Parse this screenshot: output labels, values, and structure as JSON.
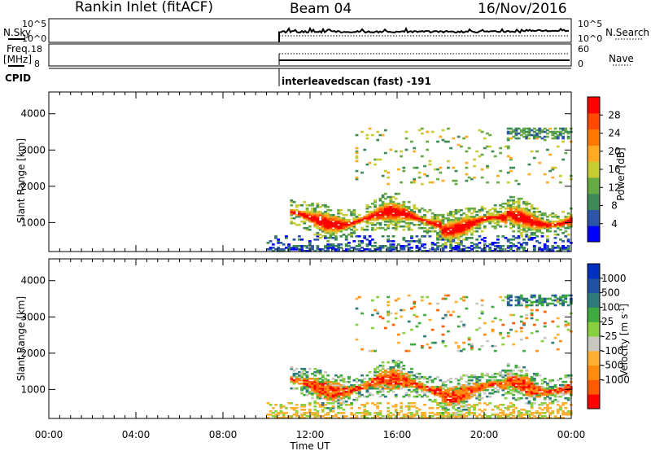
{
  "header": {
    "station": "Rankin Inlet (fitACF)",
    "beam": "Beam 04",
    "date": "16/Nov/2016"
  },
  "strip": {
    "nsky_label": "N.Sky",
    "nsky_top": "10^5",
    "nsky_bottom": "10^0",
    "nsearch_label": "N.Search",
    "freq_label_1": "Freq.",
    "freq_label_2": "[MHz]",
    "freq_top": "18",
    "freq_bottom": "8",
    "nave_top": "60",
    "nave_bottom": "0",
    "nave_label": "Nave",
    "cpid_label": "CPID",
    "cpid_text": "interleavedscan (fast) -191"
  },
  "colors": {
    "power": [
      "#0000ff",
      "#2c55a8",
      "#3d8a55",
      "#66aa44",
      "#c8cc33",
      "#ffaa22",
      "#ff7a00",
      "#ff4a00",
      "#ff0000"
    ],
    "velocity": [
      "#ff0000",
      "#ff5a00",
      "#ff8c10",
      "#ffb030",
      "#c8c8c0",
      "#88d040",
      "#3faa3f",
      "#2f7a7a",
      "#2050a0",
      "#0030c0"
    ]
  },
  "chart_data": [
    {
      "type": "heatmap",
      "name": "power",
      "xlabel": "Time UT",
      "ylabel": "Slant Range [km]",
      "x_ticks": [
        "00:00",
        "04:00",
        "08:00",
        "12:00",
        "16:00",
        "20:00",
        "00:00"
      ],
      "y_ticks": [
        1000,
        2000,
        3000,
        4000
      ],
      "ylim": [
        200,
        4600
      ],
      "colorbar_label": "Power [dB]",
      "colorbar_ticks": [
        4,
        8,
        12,
        16,
        20,
        24,
        28
      ],
      "colorbar_range": [
        0,
        32
      ],
      "data_start": "10:00",
      "data_end": "24:00",
      "features": [
        {
          "desc": "main echo band",
          "t_start": "11:00",
          "t_end": "24:00",
          "range_km": [
            700,
            1500
          ],
          "power_db": 28
        },
        {
          "desc": "near range scatter",
          "t_start": "10:00",
          "t_end": "24:00",
          "range_km": [
            200,
            600
          ],
          "power_db": 6
        },
        {
          "desc": "far range patches",
          "t_start": "14:00",
          "t_end": "23:00",
          "range_km": [
            2000,
            3500
          ],
          "power_db": 18
        }
      ]
    },
    {
      "type": "heatmap",
      "name": "velocity",
      "xlabel": "Time UT",
      "ylabel": "Slant Range [km]",
      "x_ticks": [
        "00:00",
        "04:00",
        "08:00",
        "12:00",
        "16:00",
        "20:00",
        "00:00"
      ],
      "y_ticks": [
        1000,
        2000,
        3000,
        4000
      ],
      "ylim": [
        200,
        4600
      ],
      "colorbar_label": "Velocity [m s^-1]",
      "colorbar_ticks": [
        1000,
        500,
        100,
        25,
        -25,
        -100,
        -500,
        -1000
      ],
      "data_start": "10:00",
      "data_end": "24:00",
      "features": [
        {
          "desc": "main echo band",
          "t_start": "11:00",
          "t_end": "24:00",
          "range_km": [
            700,
            1600
          ],
          "velocity_ms": -300
        },
        {
          "desc": "near range scatter",
          "t_start": "10:00",
          "t_end": "24:00",
          "range_km": [
            200,
            500
          ],
          "velocity_ms": -100
        },
        {
          "desc": "far range patches",
          "t_start": "14:00",
          "t_end": "23:00",
          "range_km": [
            2000,
            3500
          ],
          "velocity_ms": 0
        }
      ]
    }
  ]
}
